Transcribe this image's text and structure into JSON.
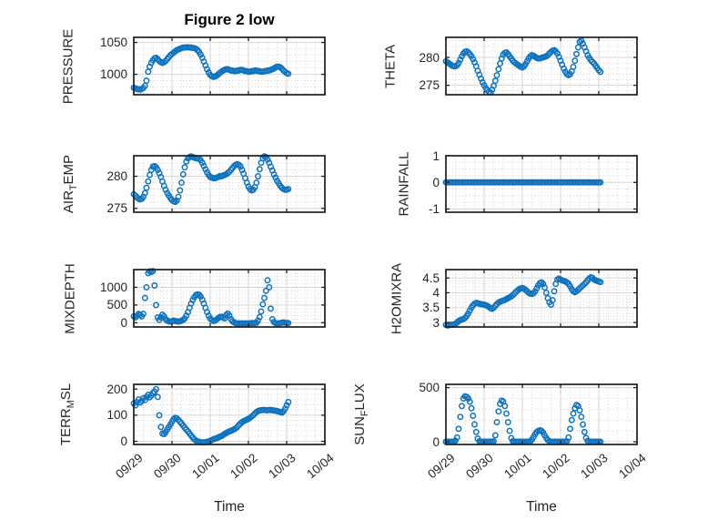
{
  "figure": {
    "title": "Figure 2 low",
    "x_axis_label": "Time",
    "x_tick_labels": [
      "09/29",
      "09/30",
      "10/01",
      "10/02",
      "10/03",
      "10/04"
    ],
    "xtick_hours": [
      0,
      24,
      48,
      72,
      96,
      120
    ],
    "xlim_hours": [
      0,
      120
    ],
    "x_minor_step_hours": 6,
    "marker_color": "#0E72BD",
    "axis_color": "#1f1f1f",
    "major_grid_color": "#d6d6d6",
    "minor_grid_color": "#c9c9c9",
    "text_color": "#262626",
    "x_hours": [
      0,
      1,
      2,
      3,
      4,
      5,
      6,
      7,
      8,
      9,
      10,
      11,
      12,
      13,
      14,
      15,
      16,
      17,
      18,
      19,
      20,
      21,
      22,
      23,
      24,
      25,
      26,
      27,
      28,
      29,
      30,
      31,
      32,
      33,
      34,
      35,
      36,
      37,
      38,
      39,
      40,
      41,
      42,
      43,
      44,
      45,
      46,
      47,
      48,
      49,
      50,
      51,
      52,
      53,
      54,
      55,
      56,
      57,
      58,
      59,
      60,
      61,
      62,
      63,
      64,
      65,
      66,
      67,
      68,
      69,
      70,
      71,
      72,
      73,
      74,
      75,
      76,
      77,
      78,
      79,
      80,
      81,
      82,
      83,
      84,
      85,
      86,
      87,
      88,
      89,
      90,
      91,
      92,
      93,
      94,
      95,
      96,
      97
    ]
  },
  "chart_data": [
    {
      "type": "scatter",
      "name": "PRESSURE",
      "row": 0,
      "col": 0,
      "ylabel_parts": [
        {
          "t": "PRESSURE",
          "sub": false
        }
      ],
      "yticks": [
        1000,
        1050
      ],
      "ylim": [
        968,
        1058
      ],
      "y_minor_step": 10,
      "values": [
        979,
        978,
        977,
        976.5,
        976,
        977,
        978.5,
        982,
        990,
        1004,
        1012,
        1018,
        1022,
        1025,
        1026,
        1024,
        1021,
        1019,
        1018,
        1019,
        1021,
        1024,
        1027,
        1030,
        1032,
        1034,
        1036,
        1038,
        1039,
        1040,
        1041,
        1042,
        1042,
        1042.5,
        1042.5,
        1042,
        1042,
        1041.5,
        1041,
        1040,
        1038,
        1035,
        1031,
        1026,
        1020,
        1014,
        1008,
        1003,
        999,
        997,
        996,
        996.5,
        998,
        1000,
        1002,
        1004,
        1006,
        1007,
        1008,
        1008,
        1007,
        1006,
        1006,
        1005,
        1005,
        1006,
        1006,
        1007,
        1007,
        1006,
        1005,
        1005,
        1004,
        1004,
        1005,
        1005,
        1006,
        1006,
        1005,
        1005,
        1004,
        1004,
        1005,
        1005,
        1006,
        1006,
        1007,
        1008,
        1009,
        1011,
        1012,
        1012,
        1011,
        1009,
        1006,
        1004,
        1002,
        1001
      ]
    },
    {
      "type": "scatter",
      "name": "THETA",
      "row": 0,
      "col": 1,
      "ylabel_parts": [
        {
          "t": "THETA",
          "sub": false
        }
      ],
      "yticks": [
        275,
        280
      ],
      "ylim": [
        273.3,
        283.6
      ],
      "y_minor_step": 1,
      "values": [
        279.3,
        279.1,
        278.9,
        278.7,
        278.5,
        278.4,
        278.4,
        278.6,
        279,
        279.6,
        280.2,
        280.7,
        281,
        281.1,
        280.9,
        280.6,
        280.2,
        279.7,
        279.1,
        278.4,
        277.6,
        276.9,
        276.2,
        275.5,
        275,
        274.5,
        274.1,
        273.8,
        273.7,
        274.2,
        274.9,
        275.8,
        276.8,
        277.9,
        278.9,
        279.8,
        280.5,
        280.8,
        280.9,
        280.6,
        280.2,
        279.8,
        279.4,
        279.1,
        278.9,
        278.7,
        278.5,
        278.3,
        278.2,
        278.4,
        278.8,
        279.3,
        279.8,
        280.2,
        280.4,
        280.3,
        280.1,
        279.9,
        279.8,
        279.8,
        279.9,
        280,
        280.1,
        280.2,
        280.4,
        280.7,
        281,
        281.2,
        281.3,
        281.1,
        280.7,
        280.1,
        279.4,
        278.7,
        278,
        277.4,
        277,
        276.8,
        277,
        277.5,
        278.3,
        279.4,
        280.6,
        281.8,
        282.8,
        283,
        282.5,
        281.8,
        281.1,
        280.4,
        279.9,
        279.5,
        279.2,
        278.9,
        278.5,
        278.1,
        277.7,
        277.4
      ]
    },
    {
      "type": "scatter",
      "name": "AIR_TEMP",
      "row": 1,
      "col": 0,
      "ylabel_parts": [
        {
          "t": "AIR",
          "sub": false
        },
        {
          "t": "T",
          "sub": true
        },
        {
          "t": "EMP",
          "sub": false
        }
      ],
      "yticks": [
        275,
        280
      ],
      "ylim": [
        274.4,
        283.2
      ],
      "y_minor_step": 1,
      "values": [
        277.2,
        277,
        276.7,
        276.5,
        276.4,
        276.5,
        276.8,
        277.4,
        278.2,
        279.2,
        280.2,
        281,
        281.5,
        281.6,
        281.4,
        281,
        280.5,
        279.9,
        279.2,
        278.5,
        277.9,
        277.4,
        277,
        276.6,
        276.3,
        276.1,
        276,
        276.2,
        276.8,
        277.8,
        279,
        280.3,
        281.4,
        282.3,
        282.8,
        283,
        283.1,
        283,
        282.9,
        282.8,
        282.8,
        282.7,
        282.5,
        282.1,
        281.6,
        281.1,
        280.6,
        280.2,
        279.9,
        279.8,
        279.7,
        279.7,
        279.8,
        279.9,
        280,
        280,
        280.1,
        280.2,
        280.3,
        280.5,
        280.7,
        281,
        281.3,
        281.6,
        281.8,
        281.9,
        281.8,
        281.5,
        281,
        280.4,
        279.7,
        279,
        278.4,
        278,
        277.8,
        277.9,
        278.3,
        279,
        280,
        281.1,
        282.1,
        282.8,
        283.1,
        283,
        282.6,
        282.1,
        281.5,
        280.9,
        280.3,
        279.8,
        279.3,
        278.9,
        278.5,
        278.2,
        278,
        277.9,
        277.9,
        278
      ]
    },
    {
      "type": "scatter",
      "name": "RAINFALL",
      "row": 1,
      "col": 1,
      "ylabel_parts": [
        {
          "t": "RAINFALL",
          "sub": false
        }
      ],
      "yticks": [
        -1,
        0,
        1
      ],
      "ylim": [
        -1.12,
        1.0
      ],
      "y_minor_step": 0.25,
      "values": [
        0,
        0,
        0,
        0,
        0,
        0,
        0,
        0,
        0,
        0,
        0,
        0,
        0,
        0,
        0,
        0,
        0,
        0,
        0,
        0,
        0,
        0,
        0,
        0,
        0,
        0,
        0,
        0,
        0,
        0,
        0,
        0,
        0,
        0,
        0,
        0,
        0,
        0,
        0,
        0,
        0,
        0,
        0,
        0,
        0,
        0,
        0,
        0,
        0,
        0,
        0,
        0,
        0,
        0,
        0,
        0,
        0,
        0,
        0,
        0,
        0,
        0,
        0,
        0,
        0,
        0,
        0,
        0,
        0,
        0,
        0,
        0,
        0,
        0,
        0,
        0,
        0,
        0,
        0,
        0,
        0,
        0,
        0,
        0,
        0,
        0,
        0,
        0,
        0,
        0,
        0,
        0,
        0,
        0,
        0,
        0,
        0,
        0
      ]
    },
    {
      "type": "scatter",
      "name": "MIXDEPTH",
      "row": 2,
      "col": 0,
      "ylabel_parts": [
        {
          "t": "MIXDEPTH",
          "sub": false
        }
      ],
      "yticks": [
        0,
        500,
        1000
      ],
      "ylim": [
        -120,
        1500
      ],
      "y_minor_step": 100,
      "values": [
        180,
        150,
        200,
        250,
        220,
        180,
        250,
        700,
        1000,
        1400,
        1450,
        1430,
        1460,
        1050,
        500,
        150,
        80,
        150,
        230,
        180,
        100,
        60,
        40,
        30,
        40,
        60,
        50,
        40,
        30,
        40,
        60,
        80,
        120,
        200,
        300,
        420,
        540,
        640,
        720,
        780,
        800,
        790,
        740,
        650,
        540,
        420,
        300,
        200,
        120,
        70,
        50,
        60,
        90,
        130,
        160,
        170,
        150,
        120,
        220,
        260,
        200,
        100,
        40,
        10,
        -10,
        -20,
        -20,
        -20,
        -20,
        -20,
        -20,
        -20,
        -20,
        -20,
        -10,
        -10,
        -10,
        0,
        60,
        160,
        320,
        520,
        700,
        900,
        1200,
        1000,
        400,
        100,
        20,
        -10,
        -20,
        -20,
        -10,
        0,
        10,
        0,
        -10,
        -10
      ]
    },
    {
      "type": "scatter",
      "name": "H2OMIXRA",
      "row": 2,
      "col": 1,
      "ylabel_parts": [
        {
          "t": "H2OMIXRA",
          "sub": false
        }
      ],
      "yticks": [
        3,
        3.5,
        4,
        4.5
      ],
      "ylim": [
        2.85,
        4.78
      ],
      "y_minor_step": 0.1,
      "values": [
        2.92,
        2.9,
        2.91,
        2.93,
        2.92,
        2.94,
        2.96,
        3,
        3.05,
        3.08,
        3.1,
        3.12,
        3.15,
        3.22,
        3.3,
        3.4,
        3.5,
        3.58,
        3.63,
        3.66,
        3.65,
        3.63,
        3.62,
        3.61,
        3.6,
        3.58,
        3.56,
        3.52,
        3.48,
        3.46,
        3.5,
        3.56,
        3.62,
        3.67,
        3.7,
        3.72,
        3.74,
        3.76,
        3.79,
        3.82,
        3.85,
        3.88,
        3.92,
        3.97,
        4.03,
        4.08,
        4.12,
        4.15,
        4.16,
        4.14,
        4.1,
        4.05,
        4,
        3.97,
        3.96,
        3.98,
        4.05,
        4.15,
        4.25,
        4.32,
        4.35,
        4.3,
        4.18,
        4,
        3.82,
        3.68,
        3.6,
        3.75,
        4.05,
        4.3,
        4.45,
        4.48,
        4.45,
        4.42,
        4.4,
        4.38,
        4.35,
        4.3,
        4.22,
        4.12,
        4.05,
        4.02,
        4.05,
        4.1,
        4.15,
        4.2,
        4.25,
        4.3,
        4.35,
        4.42,
        4.48,
        4.52,
        4.5,
        4.45,
        4.42,
        4.4,
        4.38,
        4.36
      ]
    },
    {
      "type": "scatter",
      "name": "TERR_MSL",
      "row": 3,
      "col": 0,
      "ylabel_parts": [
        {
          "t": "TERR",
          "sub": false
        },
        {
          "t": "M",
          "sub": true
        },
        {
          "t": "SL",
          "sub": false
        }
      ],
      "yticks": [
        0,
        100,
        200
      ],
      "ylim": [
        -12,
        218
      ],
      "y_minor_step": 20,
      "values": [
        145,
        138,
        150,
        160,
        148,
        155,
        165,
        158,
        170,
        178,
        168,
        175,
        185,
        190,
        200,
        170,
        100,
        55,
        30,
        28,
        35,
        45,
        55,
        65,
        75,
        85,
        90,
        88,
        82,
        75,
        68,
        60,
        52,
        45,
        38,
        30,
        22,
        15,
        8,
        3,
        0,
        -2,
        -3,
        -4,
        -4,
        -3,
        -2,
        0,
        2,
        5,
        8,
        10,
        12,
        15,
        18,
        20,
        24,
        28,
        32,
        35,
        38,
        40,
        43,
        46,
        50,
        55,
        62,
        68,
        73,
        77,
        80,
        83,
        86,
        90,
        95,
        100,
        106,
        112,
        116,
        118,
        119,
        120,
        120,
        119,
        119,
        120,
        120,
        119,
        118,
        117,
        116,
        114,
        112,
        110,
        115,
        125,
        138,
        150
      ]
    },
    {
      "type": "scatter",
      "name": "SUN_FLUX",
      "row": 3,
      "col": 1,
      "ylabel_parts": [
        {
          "t": "SUN",
          "sub": false
        },
        {
          "t": "F",
          "sub": true
        },
        {
          "t": "LUX",
          "sub": false
        }
      ],
      "yticks": [
        0,
        500
      ],
      "ylim": [
        -25,
        530
      ],
      "y_minor_step": 100,
      "values": [
        0,
        0,
        0,
        0,
        0,
        2,
        10,
        40,
        120,
        230,
        330,
        400,
        420,
        415,
        400,
        370,
        310,
        240,
        160,
        90,
        30,
        5,
        0,
        0,
        0,
        0,
        0,
        0,
        0,
        0,
        5,
        60,
        180,
        280,
        350,
        380,
        370,
        330,
        260,
        180,
        100,
        35,
        5,
        0,
        0,
        0,
        0,
        0,
        0,
        0,
        0,
        0,
        0,
        5,
        20,
        45,
        70,
        90,
        100,
        105,
        100,
        85,
        60,
        35,
        15,
        5,
        0,
        0,
        0,
        0,
        0,
        0,
        0,
        0,
        0,
        0,
        5,
        40,
        120,
        200,
        260,
        310,
        340,
        330,
        290,
        230,
        160,
        90,
        35,
        8,
        0,
        0,
        0,
        0,
        0,
        0,
        0,
        0
      ]
    }
  ]
}
